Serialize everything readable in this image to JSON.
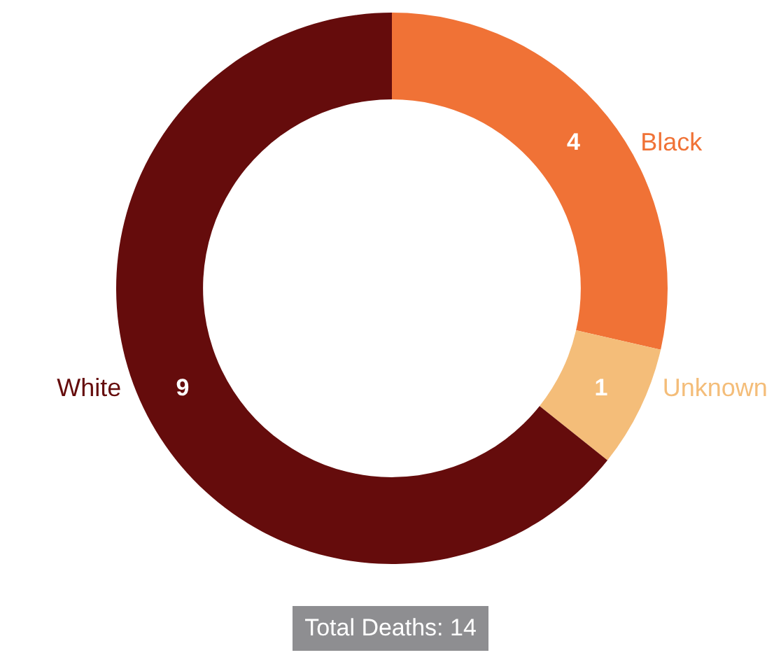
{
  "chart_data": {
    "type": "donut",
    "categories": [
      "Black",
      "Unknown",
      "White"
    ],
    "values": [
      4,
      1,
      9
    ],
    "colors": [
      "#f07236",
      "#f4bd79",
      "#650c0c"
    ],
    "data_labels": true,
    "legend": false,
    "annotations": [
      "Total Deaths: 14"
    ]
  }
}
